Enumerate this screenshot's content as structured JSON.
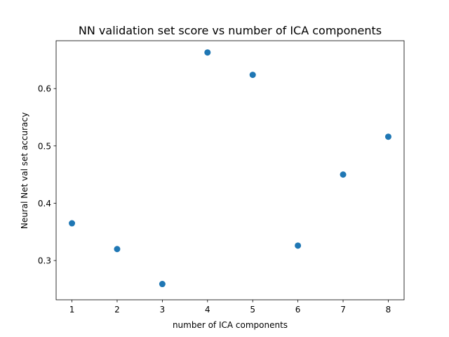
{
  "chart_data": {
    "type": "scatter",
    "title": "NN validation set score vs number of ICA components",
    "xlabel": "number of ICA components",
    "ylabel": "Neural Net val set accuracy",
    "x": [
      1,
      2,
      3,
      4,
      5,
      6,
      7,
      8
    ],
    "y": [
      0.365,
      0.32,
      0.259,
      0.663,
      0.624,
      0.326,
      0.45,
      0.516
    ],
    "xlim": [
      0.65,
      8.35
    ],
    "ylim": [
      0.2315,
      0.6835
    ],
    "xticks": [
      1,
      2,
      3,
      4,
      5,
      6,
      7,
      8
    ],
    "xtick_labels": [
      "1",
      "2",
      "3",
      "4",
      "5",
      "6",
      "7",
      "8"
    ],
    "yticks": [
      0.3,
      0.4,
      0.5,
      0.6
    ],
    "ytick_labels": [
      "0.3",
      "0.4",
      "0.5",
      "0.6"
    ],
    "grid": false,
    "marker_color": "#1f77b4"
  }
}
